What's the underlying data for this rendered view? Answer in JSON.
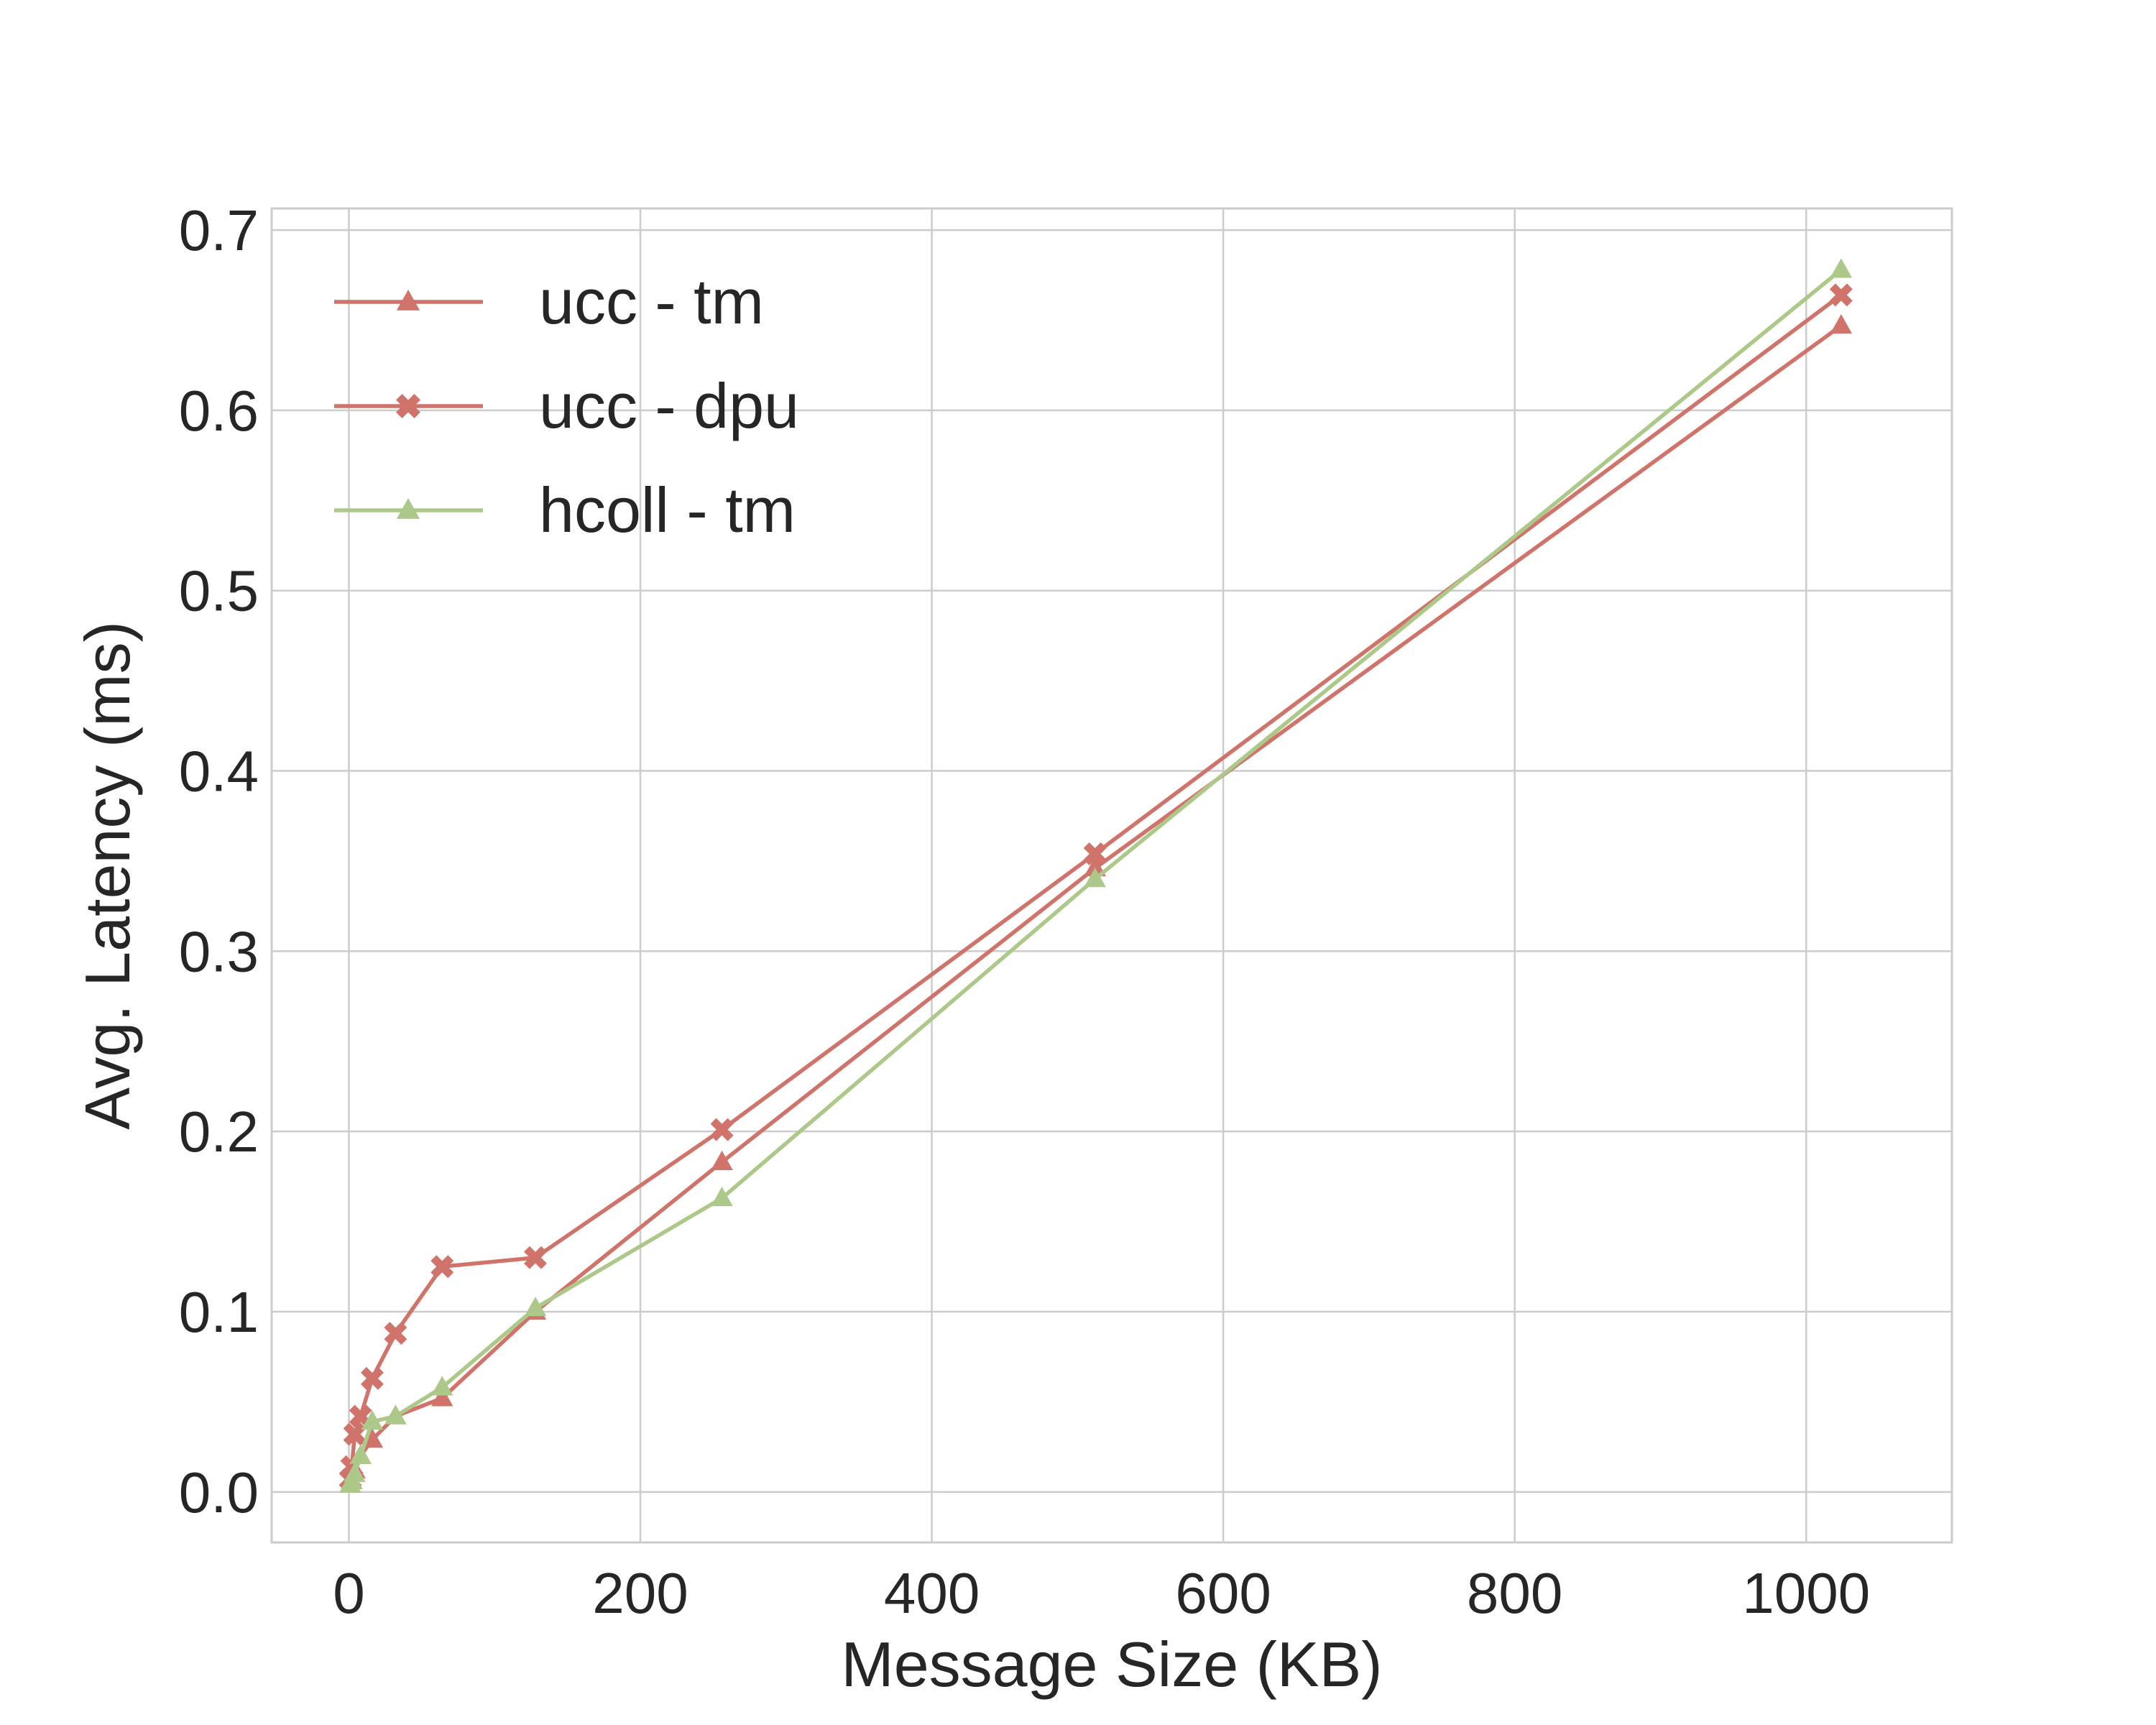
{
  "chart_data": {
    "type": "line",
    "xlabel": "Message Size (KB)",
    "ylabel": "Avg. Latency (ms)",
    "xlim": [
      -53,
      1100
    ],
    "ylim": [
      -0.028,
      0.712
    ],
    "xticks": [
      0,
      200,
      400,
      600,
      800,
      1000
    ],
    "yticks": [
      0.0,
      0.1,
      0.2,
      0.3,
      0.4,
      0.5,
      0.6,
      0.7
    ],
    "ytick_labels": [
      "0.0",
      "0.1",
      "0.2",
      "0.3",
      "0.4",
      "0.5",
      "0.6",
      "0.7"
    ],
    "grid": true,
    "legend_position": "top-left",
    "x": [
      1,
      2,
      4,
      8,
      16,
      32,
      64,
      128,
      256,
      512,
      1024
    ],
    "series": [
      {
        "name": "ucc - tm",
        "color": "#d0746b",
        "marker": "triangle",
        "values": [
          0.004,
          0.006,
          0.012,
          0.02,
          0.029,
          0.042,
          0.052,
          0.1,
          0.183,
          0.346,
          0.647
        ]
      },
      {
        "name": "ucc - dpu",
        "color": "#d0746b",
        "marker": "x",
        "values": [
          0.007,
          0.014,
          0.032,
          0.042,
          0.063,
          0.088,
          0.125,
          0.13,
          0.201,
          0.354,
          0.664
        ]
      },
      {
        "name": "hcoll - tm",
        "color": "#adc98a",
        "marker": "triangle",
        "values": [
          0.004,
          0.006,
          0.01,
          0.02,
          0.039,
          0.042,
          0.058,
          0.102,
          0.163,
          0.34,
          0.678
        ]
      }
    ]
  }
}
